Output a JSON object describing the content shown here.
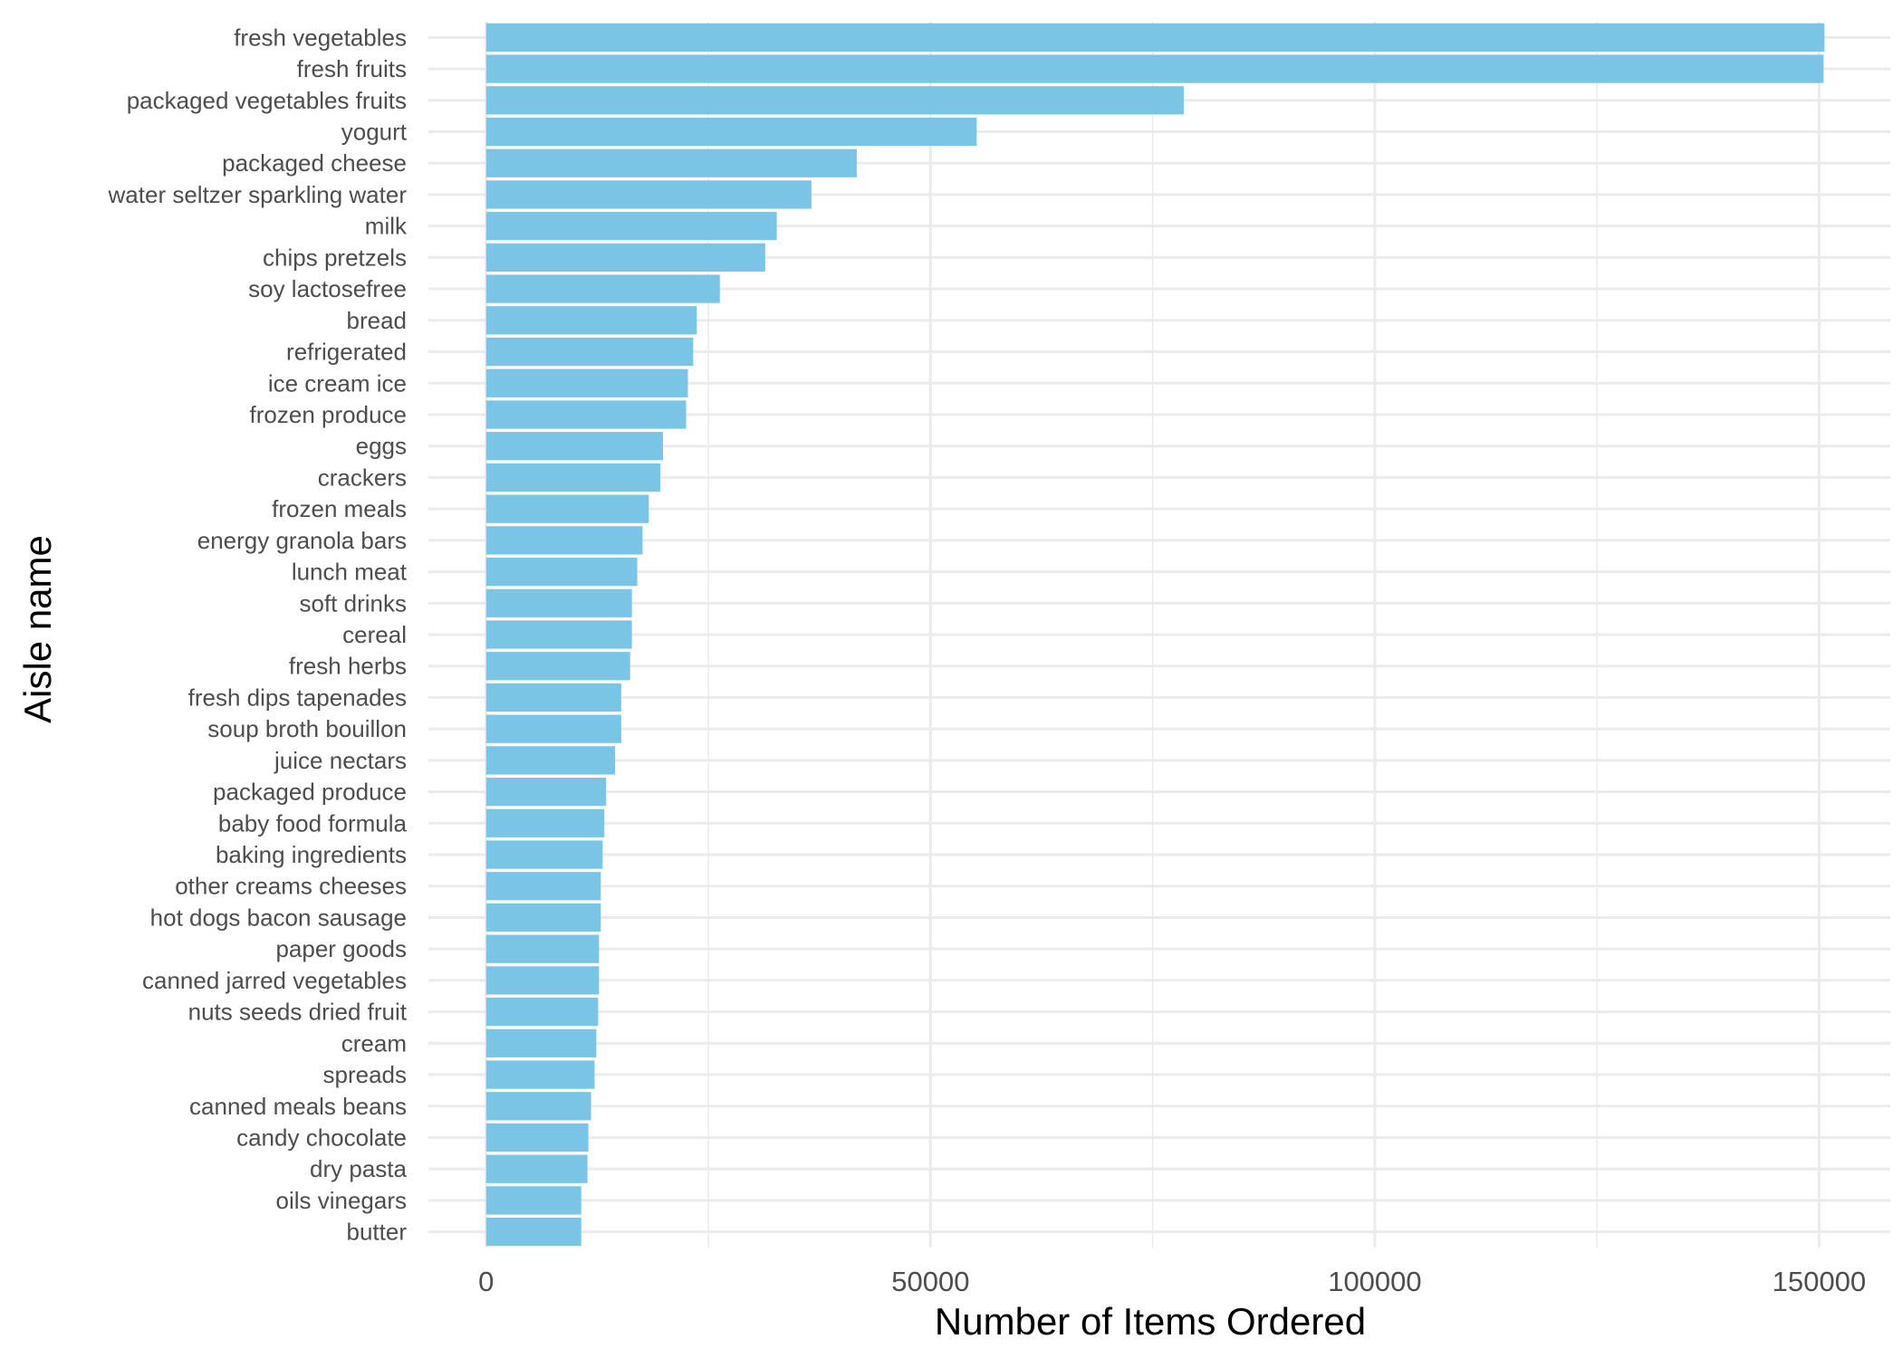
{
  "chart_data": {
    "type": "bar",
    "orientation": "horizontal",
    "xlabel": "Number of Items Ordered",
    "ylabel": "Aisle name",
    "xlim": [
      -6500,
      158000
    ],
    "xticks": [
      0,
      50000,
      100000,
      150000
    ],
    "xtick_labels": [
      "0",
      "50000",
      "100000",
      "150000"
    ],
    "grid": true,
    "bar_color": "#7AC4E6",
    "grid_color": "#EBEBEB",
    "categories": [
      "fresh vegetables",
      "fresh fruits",
      "packaged vegetables fruits",
      "yogurt",
      "packaged cheese",
      "water seltzer sparkling water",
      "milk",
      "chips pretzels",
      "soy lactosefree",
      "bread",
      "refrigerated",
      "ice cream ice",
      "frozen produce",
      "eggs",
      "crackers",
      "frozen meals",
      "energy granola bars",
      "lunch meat",
      "soft drinks",
      "cereal",
      "fresh herbs",
      "fresh dips tapenades",
      "soup broth bouillon",
      "juice nectars",
      "packaged produce",
      "baby food formula",
      "baking ingredients",
      "other creams cheeses",
      "hot dogs bacon sausage",
      "paper goods",
      "canned jarred vegetables",
      "nuts seeds dried fruit",
      "cream",
      "spreads",
      "canned meals beans",
      "candy chocolate",
      "dry pasta",
      "oils vinegars",
      "butter"
    ],
    "values": [
      150600,
      150500,
      78500,
      55200,
      41700,
      36600,
      32700,
      31400,
      26300,
      23700,
      23300,
      22700,
      22500,
      19900,
      19600,
      18300,
      17600,
      17000,
      16400,
      16400,
      16200,
      15200,
      15200,
      14500,
      13500,
      13300,
      13100,
      12900,
      12900,
      12700,
      12700,
      12600,
      12400,
      12200,
      11800,
      11500,
      11400,
      10700,
      10700
    ]
  }
}
